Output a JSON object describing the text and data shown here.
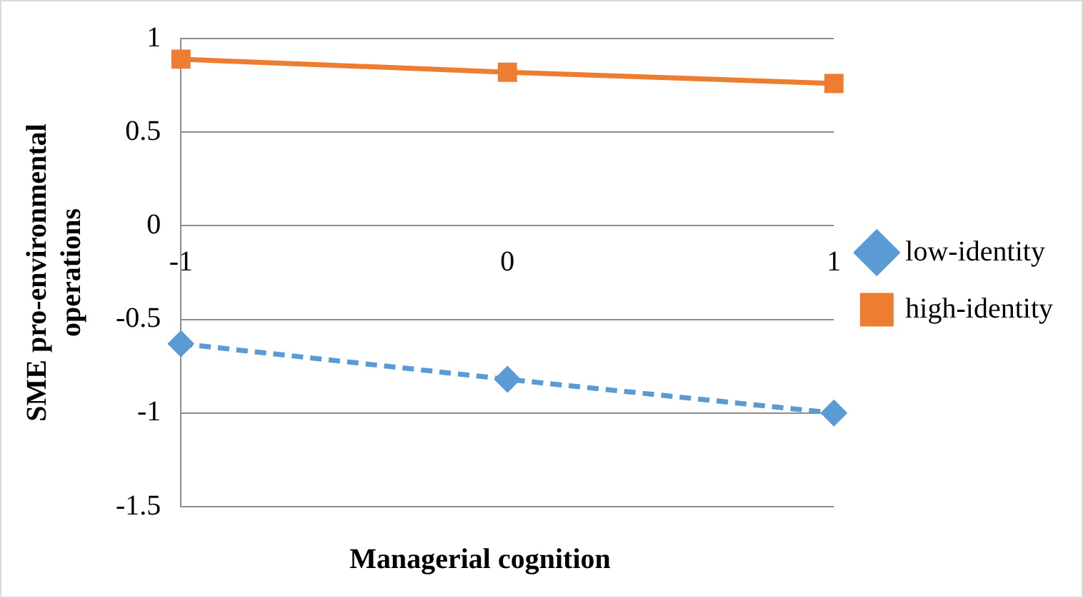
{
  "chart_data": {
    "type": "line",
    "xlabel": "Managerial cognition",
    "ylabel": "SME pro-environmental operations",
    "categories": [
      "-1",
      "0",
      "1"
    ],
    "series": [
      {
        "name": "low-identity",
        "color": "#5b9bd5",
        "values": [
          -0.63,
          -0.82,
          -1.0
        ],
        "marker": "diamond",
        "line_style": "dashed"
      },
      {
        "name": "high-identity",
        "color": "#ed7d31",
        "values": [
          0.89,
          0.82,
          0.76
        ],
        "marker": "square",
        "line_style": "solid"
      }
    ],
    "ylim": [
      -1.5,
      1
    ],
    "yticks": [
      -1.5,
      -1,
      -0.5,
      0,
      0.5,
      1
    ],
    "grid": "y",
    "legend": "right"
  }
}
